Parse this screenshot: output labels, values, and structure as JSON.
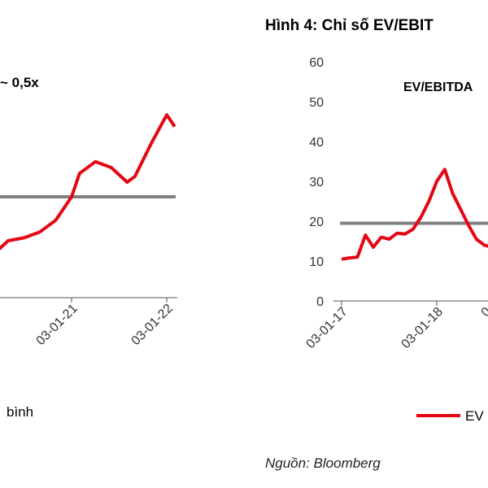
{
  "chart_data": [
    {
      "type": "line",
      "title": "",
      "annotation": "~ 0,5x",
      "x_tick_labels": [
        "03-01-21",
        "03-01-22"
      ],
      "legend_partial": "bình",
      "mean_line_color": "#808080",
      "series": [
        {
          "color": "#e30613",
          "x": [
            "2020-03",
            "2020-05",
            "2020-07",
            "2020-09",
            "2020-11",
            "2021-01",
            "2021-02",
            "2021-04",
            "2021-06",
            "2021-08",
            "2021-09",
            "2021-11",
            "2022-01",
            "2022-02"
          ],
          "y": [
            0.3,
            0.35,
            0.36,
            0.38,
            0.42,
            0.5,
            0.58,
            0.62,
            0.6,
            0.55,
            0.57,
            0.68,
            0.78,
            0.74
          ]
        }
      ]
    },
    {
      "type": "line",
      "title": "Hình 4: Chỉ số EV/EBIT",
      "series_label": "EV/EBITDA",
      "legend_partial": "EV",
      "ylim": [
        0,
        60
      ],
      "y_ticks": [
        "0",
        "10",
        "20",
        "30",
        "40",
        "50",
        "60"
      ],
      "x_tick_labels": [
        "03-01-17",
        "03-01-18",
        "0"
      ],
      "mean_value": 19.5,
      "mean_line_color": "#808080",
      "series": [
        {
          "color": "#e30613",
          "x": [
            "2017-01",
            "2017-02",
            "2017-03",
            "2017-04",
            "2017-05",
            "2017-06",
            "2017-07",
            "2017-08",
            "2017-09",
            "2017-10",
            "2017-11",
            "2017-12",
            "2018-01",
            "2018-02",
            "2018-03",
            "2018-04",
            "2018-05",
            "2018-06",
            "2018-07",
            "2018-08"
          ],
          "y": [
            10.5,
            10.8,
            11,
            16.5,
            13.5,
            16,
            15.5,
            17,
            16.8,
            18,
            21,
            25,
            30,
            33,
            27,
            23,
            19,
            15.5,
            14,
            13.5
          ]
        }
      ]
    }
  ],
  "source_note": "Nguồn: Bloomberg"
}
